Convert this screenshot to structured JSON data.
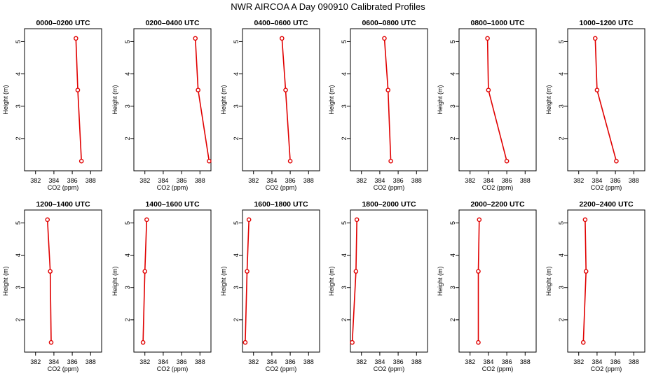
{
  "figure": {
    "title": "NWR AIRCOA A  Day 090910  Calibrated Profiles"
  },
  "chart_data": [
    {
      "type": "line",
      "title": "0000–0200 UTC",
      "xlabel": "CO2 (ppm)",
      "ylabel": "Height (m)",
      "xlim": [
        380.8,
        389.2
      ],
      "ylim": [
        1.0,
        5.4
      ],
      "xticks": [
        "382",
        "384",
        "386",
        "388"
      ],
      "yticks": [
        "2",
        "3",
        "4",
        "5"
      ],
      "grid": false,
      "color": "#e00000",
      "series": [
        {
          "points": [
            [
              386.4,
              5.1
            ],
            [
              386.6,
              3.5
            ],
            [
              387.0,
              1.3
            ]
          ]
        }
      ]
    },
    {
      "type": "line",
      "title": "0200–0400 UTC",
      "xlabel": "CO2 (ppm)",
      "ylabel": "Height (m)",
      "xlim": [
        380.8,
        389.2
      ],
      "ylim": [
        1.0,
        5.4
      ],
      "xticks": [
        "382",
        "384",
        "386",
        "388"
      ],
      "yticks": [
        "2",
        "3",
        "4",
        "5"
      ],
      "grid": false,
      "color": "#e00000",
      "series": [
        {
          "points": [
            [
              387.5,
              5.1
            ],
            [
              387.8,
              3.5
            ],
            [
              389.0,
              1.3
            ]
          ]
        }
      ]
    },
    {
      "type": "line",
      "title": "0400–0600 UTC",
      "xlabel": "CO2 (ppm)",
      "ylabel": "Height (m)",
      "xlim": [
        380.8,
        389.2
      ],
      "ylim": [
        1.0,
        5.4
      ],
      "xticks": [
        "382",
        "384",
        "386",
        "388"
      ],
      "yticks": [
        "2",
        "3",
        "4",
        "5"
      ],
      "grid": false,
      "color": "#e00000",
      "series": [
        {
          "points": [
            [
              385.1,
              5.1
            ],
            [
              385.5,
              3.5
            ],
            [
              386.0,
              1.3
            ]
          ]
        }
      ]
    },
    {
      "type": "line",
      "title": "0600–0800 UTC",
      "xlabel": "CO2 (ppm)",
      "ylabel": "Height (m)",
      "xlim": [
        380.8,
        389.2
      ],
      "ylim": [
        1.0,
        5.4
      ],
      "xticks": [
        "382",
        "384",
        "386",
        "388"
      ],
      "yticks": [
        "2",
        "3",
        "4",
        "5"
      ],
      "grid": false,
      "color": "#e00000",
      "series": [
        {
          "points": [
            [
              384.5,
              5.1
            ],
            [
              384.9,
              3.5
            ],
            [
              385.2,
              1.3
            ]
          ]
        }
      ]
    },
    {
      "type": "line",
      "title": "0800–1000 UTC",
      "xlabel": "CO2 (ppm)",
      "ylabel": "Height (m)",
      "xlim": [
        380.8,
        389.2
      ],
      "ylim": [
        1.0,
        5.4
      ],
      "xticks": [
        "382",
        "384",
        "386",
        "388"
      ],
      "yticks": [
        "2",
        "3",
        "4",
        "5"
      ],
      "grid": false,
      "color": "#e00000",
      "series": [
        {
          "points": [
            [
              383.9,
              5.1
            ],
            [
              384.0,
              3.5
            ],
            [
              386.0,
              1.3
            ]
          ]
        }
      ]
    },
    {
      "type": "line",
      "title": "1000–1200 UTC",
      "xlabel": "CO2 (ppm)",
      "ylabel": "Height (m)",
      "xlim": [
        380.8,
        389.2
      ],
      "ylim": [
        1.0,
        5.4
      ],
      "xticks": [
        "382",
        "384",
        "386",
        "388"
      ],
      "yticks": [
        "2",
        "3",
        "4",
        "5"
      ],
      "grid": false,
      "color": "#e00000",
      "series": [
        {
          "points": [
            [
              383.8,
              5.1
            ],
            [
              384.0,
              3.5
            ],
            [
              386.1,
              1.3
            ]
          ]
        }
      ]
    },
    {
      "type": "line",
      "title": "1200–1400 UTC",
      "xlabel": "CO2 (ppm)",
      "ylabel": "Height (m)",
      "xlim": [
        380.8,
        389.2
      ],
      "ylim": [
        1.0,
        5.4
      ],
      "xticks": [
        "382",
        "384",
        "386",
        "388"
      ],
      "yticks": [
        "2",
        "3",
        "4",
        "5"
      ],
      "grid": false,
      "color": "#e00000",
      "series": [
        {
          "points": [
            [
              383.3,
              5.1
            ],
            [
              383.6,
              3.5
            ],
            [
              383.7,
              1.3
            ]
          ]
        }
      ]
    },
    {
      "type": "line",
      "title": "1400–1600 UTC",
      "xlabel": "CO2 (ppm)",
      "ylabel": "Height (m)",
      "xlim": [
        380.8,
        389.2
      ],
      "ylim": [
        1.0,
        5.4
      ],
      "xticks": [
        "382",
        "384",
        "386",
        "388"
      ],
      "yticks": [
        "2",
        "3",
        "4",
        "5"
      ],
      "grid": false,
      "color": "#e00000",
      "series": [
        {
          "points": [
            [
              382.2,
              5.1
            ],
            [
              382.0,
              3.5
            ],
            [
              381.8,
              1.3
            ]
          ]
        }
      ]
    },
    {
      "type": "line",
      "title": "1600–1800 UTC",
      "xlabel": "CO2 (ppm)",
      "ylabel": "Height (m)",
      "xlim": [
        380.8,
        389.2
      ],
      "ylim": [
        1.0,
        5.4
      ],
      "xticks": [
        "382",
        "384",
        "386",
        "388"
      ],
      "yticks": [
        "2",
        "3",
        "4",
        "5"
      ],
      "grid": false,
      "color": "#e00000",
      "series": [
        {
          "points": [
            [
              381.5,
              5.1
            ],
            [
              381.3,
              3.5
            ],
            [
              381.1,
              1.3
            ]
          ]
        }
      ]
    },
    {
      "type": "line",
      "title": "1800–2000 UTC",
      "xlabel": "CO2 (ppm)",
      "ylabel": "Height (m)",
      "xlim": [
        380.8,
        389.2
      ],
      "ylim": [
        1.0,
        5.4
      ],
      "xticks": [
        "382",
        "384",
        "386",
        "388"
      ],
      "yticks": [
        "2",
        "3",
        "4",
        "5"
      ],
      "grid": false,
      "color": "#e00000",
      "series": [
        {
          "points": [
            [
              381.5,
              5.1
            ],
            [
              381.4,
              3.5
            ],
            [
              381.0,
              1.3
            ]
          ]
        }
      ]
    },
    {
      "type": "line",
      "title": "2000–2200 UTC",
      "xlabel": "CO2 (ppm)",
      "ylabel": "Height (m)",
      "xlim": [
        380.8,
        389.2
      ],
      "ylim": [
        1.0,
        5.4
      ],
      "xticks": [
        "382",
        "384",
        "386",
        "388"
      ],
      "yticks": [
        "2",
        "3",
        "4",
        "5"
      ],
      "grid": false,
      "color": "#e00000",
      "series": [
        {
          "points": [
            [
              383.0,
              5.1
            ],
            [
              382.9,
              3.5
            ],
            [
              382.9,
              1.3
            ]
          ]
        }
      ]
    },
    {
      "type": "line",
      "title": "2200–2400 UTC",
      "xlabel": "CO2 (ppm)",
      "ylabel": "Height (m)",
      "xlim": [
        380.8,
        389.2
      ],
      "ylim": [
        1.0,
        5.4
      ],
      "xticks": [
        "382",
        "384",
        "386",
        "388"
      ],
      "yticks": [
        "2",
        "3",
        "4",
        "5"
      ],
      "grid": false,
      "color": "#e00000",
      "series": [
        {
          "points": [
            [
              382.7,
              5.1
            ],
            [
              382.8,
              3.5
            ],
            [
              382.5,
              1.3
            ]
          ]
        }
      ]
    }
  ]
}
